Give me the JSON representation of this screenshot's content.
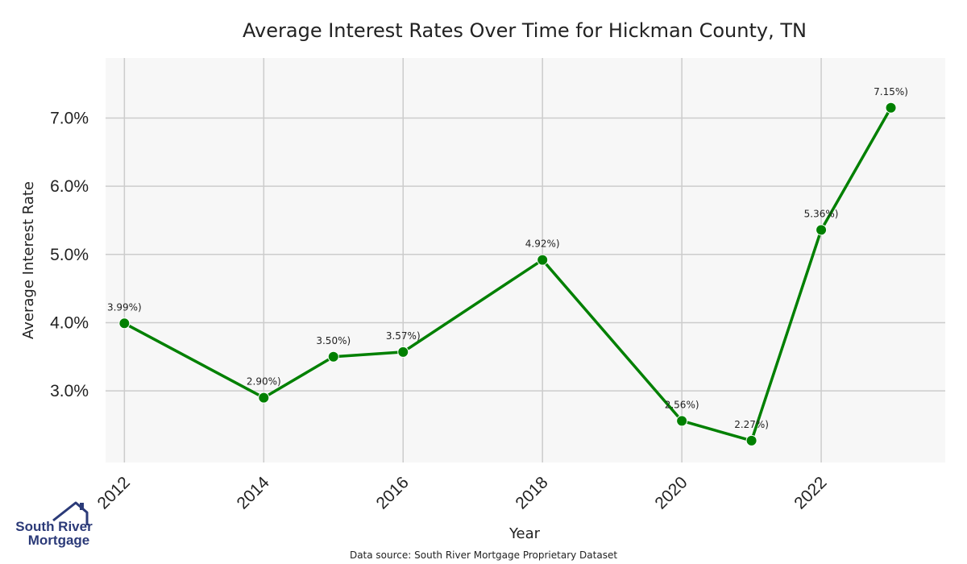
{
  "chart_data": {
    "type": "line",
    "title": "Average Interest Rates Over Time for Hickman County, TN",
    "xlabel": "Year",
    "ylabel": "Average Interest Rate",
    "x": [
      2012,
      2014,
      2015,
      2016,
      2018,
      2020,
      2021,
      2022,
      2023
    ],
    "series": [
      {
        "values": [
          3.99,
          2.9,
          3.5,
          3.57,
          4.92,
          2.56,
          2.27,
          5.36,
          7.15
        ]
      }
    ],
    "data_labels": [
      "3.99%)",
      "2.90%)",
      "3.50%)",
      "3.57%)",
      "4.92%)",
      "2.56%)",
      "2.27%)",
      "5.36%)",
      "7.15%)"
    ],
    "x_ticks": [
      "2012",
      "2014",
      "2016",
      "2018",
      "2020",
      "2022"
    ],
    "y_ticks": [
      "3.0%",
      "4.0%",
      "5.0%",
      "6.0%",
      "7.0%"
    ],
    "xlim": [
      2011.73,
      2023.78
    ],
    "ylim": [
      1.95,
      7.88
    ],
    "grid": true,
    "line_color": "#008000",
    "background": "#f7f7f7",
    "grid_color": "#cccccc"
  },
  "footer": {
    "source": "Data source: South River Mortgage Proprietary Dataset"
  },
  "logo": {
    "line1": "South River",
    "line2": "Mortgage",
    "color": "#2b3a78"
  }
}
